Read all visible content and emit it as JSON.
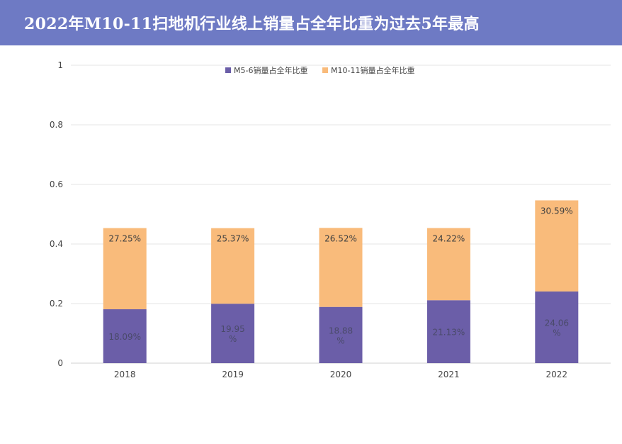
{
  "header": {
    "title": "2022年M10-11扫地机行业线上销量占全年比重为过去5年最高",
    "background": "#6e7ac4"
  },
  "chart_data": {
    "type": "bar",
    "stacked": true,
    "categories": [
      "2018",
      "2019",
      "2020",
      "2021",
      "2022"
    ],
    "series": [
      {
        "name": "M5-6销量占全年比重",
        "color": "#6b5ea8",
        "values": [
          0.1809,
          0.1995,
          0.1888,
          0.2113,
          0.2406
        ],
        "labels": [
          "18.09%",
          "19.95%",
          "18.88%",
          "21.13%",
          "24.06%"
        ]
      },
      {
        "name": "M10-11销量占全年比重",
        "color": "#f9bb7b",
        "values": [
          0.2725,
          0.2537,
          0.2652,
          0.2422,
          0.3059
        ],
        "labels": [
          "27.25%",
          "25.37%",
          "26.52%",
          "24.22%",
          "30.59%"
        ]
      }
    ],
    "ylim": [
      0,
      1
    ],
    "yticks": [
      "0",
      "0.2",
      "0.4",
      "0.6",
      "0.8",
      "1"
    ],
    "grid": true,
    "legend_position": "top"
  }
}
